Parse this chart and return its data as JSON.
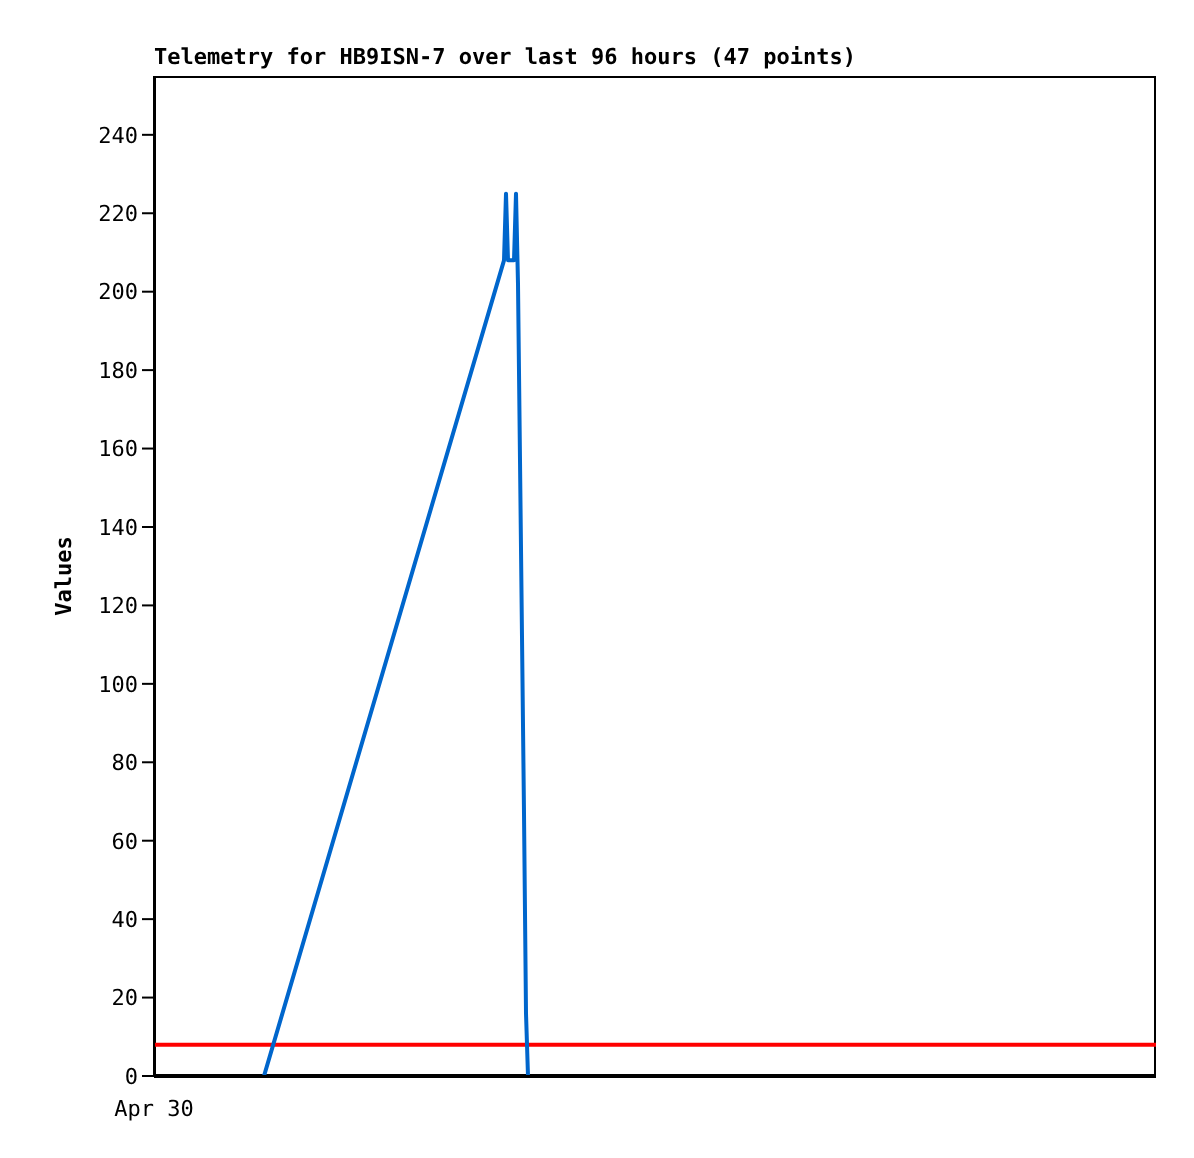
{
  "chart_data": {
    "type": "line",
    "title": "Telemetry for HB9ISN-7 over last 96 hours (47 points)",
    "ylabel": "Values",
    "annotations": [
      "Apr 30"
    ],
    "categories": [
      null,
      null,
      null,
      null,
      null,
      null,
      null,
      null,
      null,
      null,
      null,
      null,
      null,
      null,
      null,
      null,
      null,
      null,
      null,
      null,
      null,
      null,
      null,
      null,
      null,
      null,
      null,
      null,
      null,
      null,
      null,
      null,
      null,
      null,
      null,
      null,
      null,
      null,
      null,
      null,
      null,
      null,
      null,
      null,
      null,
      null,
      null,
      null,
      null,
      null,
      null,
      null,
      null,
      null,
      null,
      null,
      null,
      null,
      null,
      null,
      null,
      null,
      null,
      null,
      null,
      null,
      null,
      null,
      null,
      null,
      null,
      null,
      null,
      null,
      null,
      null,
      null,
      null,
      null,
      null,
      null,
      null,
      null,
      null,
      null,
      null,
      null,
      null,
      null,
      null,
      null,
      null,
      null,
      null,
      null,
      null,
      null,
      null,
      null,
      null,
      null,
      null,
      null,
      null,
      null,
      null,
      null,
      null,
      null,
      null,
      null,
      null,
      null,
      null,
      null,
      null,
      null,
      null,
      null,
      null,
      null,
      null,
      null,
      null,
      null,
      null,
      null,
      null,
      null,
      null,
      null,
      null,
      null,
      null,
      null,
      null,
      null,
      null,
      null,
      null,
      null,
      null,
      null,
      null,
      null,
      null,
      null,
      null,
      null,
      null,
      null,
      null,
      null,
      null,
      null,
      null,
      null,
      null,
      null,
      null,
      null,
      null,
      null,
      null,
      null,
      null,
      null,
      null,
      null,
      null,
      null,
      null,
      null,
      null,
      null,
      null,
      null,
      null,
      null,
      null,
      null,
      null,
      null,
      null,
      null,
      null,
      null,
      null,
      null,
      null,
      null,
      null,
      null,
      null,
      null,
      null,
      null,
      null,
      null,
      null,
      null,
      null,
      null,
      null,
      null,
      null,
      null,
      null,
      null,
      null,
      null,
      null,
      null,
      null,
      null,
      null,
      null,
      null,
      null,
      null,
      null,
      null,
      null,
      null,
      null,
      null,
      null,
      null,
      null,
      null,
      null,
      null,
      null,
      null,
      null,
      null,
      null,
      null,
      null,
      null,
      null,
      null,
      null,
      null,
      null,
      null,
      null,
      null,
      null,
      null,
      null,
      null,
      null,
      null,
      null,
      null,
      null,
      null,
      null,
      null,
      null,
      null,
      null,
      null,
      null,
      null,
      null,
      null,
      null,
      null,
      null,
      null,
      null,
      null,
      null,
      null,
      null,
      null,
      null,
      null,
      null,
      null,
      null,
      null,
      null,
      null,
      null,
      null,
      null,
      null,
      null,
      null,
      null,
      null,
      null,
      null,
      null,
      null,
      null,
      null,
      null,
      null,
      null,
      null,
      null,
      null,
      null,
      null,
      null,
      null,
      null,
      null,
      null,
      null,
      null,
      null,
      null,
      null,
      null,
      null,
      null,
      null,
      null,
      null,
      null,
      null,
      null,
      null,
      null,
      null,
      null,
      null,
      null,
      null,
      null,
      null,
      null,
      null,
      null,
      null,
      null,
      null,
      null,
      null,
      null,
      null,
      null,
      null,
      null,
      null,
      null,
      null,
      null,
      null,
      null,
      null,
      null,
      null,
      null,
      null,
      null,
      null,
      null,
      null,
      null,
      null,
      null,
      null,
      null,
      null,
      null,
      null,
      null,
      null,
      null,
      null,
      null,
      null,
      null,
      null,
      null,
      null,
      null,
      null,
      null,
      null,
      null,
      null,
      null,
      null,
      null,
      null,
      null,
      null,
      null,
      null,
      null,
      null,
      null,
      null,
      null,
      null,
      null,
      null,
      null,
      null,
      null,
      null,
      null,
      null,
      null,
      null,
      null,
      null,
      null,
      null,
      null,
      null,
      null,
      null,
      null,
      null,
      null,
      null,
      null,
      null,
      null,
      null,
      null,
      null,
      null,
      null,
      null,
      null,
      null,
      null,
      null,
      null,
      null,
      null,
      null,
      null,
      null,
      null,
      null,
      null,
      null,
      null,
      null,
      null,
      null,
      null,
      null,
      null,
      null,
      null,
      null,
      null,
      null,
      null,
      null,
      null,
      null,
      null,
      null,
      null,
      null,
      null,
      null,
      null,
      null,
      null,
      null,
      null,
      null,
      null,
      null,
      null,
      null,
      null,
      null,
      null,
      null,
      null,
      null,
      null,
      null,
      null,
      null,
      null,
      null,
      null,
      null,
      null,
      null,
      null,
      null,
      null,
      null,
      null,
      null,
      null
    ],
    "ylim": [
      0,
      255
    ],
    "yticks": [
      0,
      20,
      40,
      60,
      80,
      100,
      120,
      140,
      160,
      180,
      200,
      220,
      240
    ],
    "grid": false,
    "legend": false,
    "ref_lines": [
      {
        "axis": "y",
        "value": 8,
        "color": "#ff0000"
      },
      {
        "axis": "y",
        "value": 0,
        "color": "#000000"
      }
    ],
    "series": [
      {
        "color": "#0066cc",
        "values": [
          null,
          null,
          null,
          null,
          null,
          null,
          null,
          null,
          null,
          null,
          null,
          null,
          null,
          null,
          null,
          null,
          null,
          null,
          null,
          null,
          null,
          null,
          null,
          null,
          null,
          null,
          null,
          null,
          null,
          null,
          null,
          null,
          null,
          null,
          null,
          null,
          null,
          null,
          null,
          null,
          null,
          null,
          null,
          null,
          null,
          null,
          null,
          null,
          null,
          null,
          null,
          null,
          null,
          null,
          null,
          0,
          null,
          null,
          null,
          null,
          null,
          null,
          null,
          null,
          null,
          null,
          null,
          null,
          null,
          null,
          null,
          null,
          null,
          null,
          null,
          null,
          null,
          null,
          null,
          null,
          null,
          null,
          null,
          null,
          null,
          null,
          null,
          null,
          null,
          null,
          null,
          null,
          null,
          null,
          null,
          null,
          null,
          null,
          null,
          null,
          null,
          null,
          null,
          null,
          null,
          null,
          null,
          null,
          null,
          null,
          null,
          null,
          null,
          null,
          null,
          null,
          null,
          null,
          null,
          null,
          null,
          null,
          null,
          null,
          null,
          null,
          null,
          null,
          null,
          null,
          null,
          null,
          null,
          null,
          null,
          null,
          null,
          null,
          null,
          null,
          null,
          null,
          null,
          null,
          null,
          null,
          null,
          null,
          null,
          null,
          null,
          null,
          null,
          null,
          null,
          null,
          null,
          null,
          null,
          null,
          null,
          null,
          null,
          null,
          null,
          null,
          null,
          null,
          null,
          null,
          null,
          null,
          null,
          null,
          null,
          208,
          225,
          208,
          null,
          null,
          208,
          225,
          202,
          157,
          112,
          67,
          16,
          0,
          null,
          null,
          null,
          null,
          null,
          null,
          null,
          null,
          null,
          null,
          null,
          null,
          null,
          null,
          null,
          null,
          null,
          null,
          null,
          null,
          null,
          null,
          null,
          null,
          null,
          null,
          null,
          null,
          null,
          null,
          null,
          null,
          null,
          null,
          null,
          null,
          null,
          null,
          null,
          null,
          null,
          null,
          null,
          null,
          null,
          null,
          null,
          null,
          null,
          null,
          null,
          null,
          null,
          null,
          null,
          null,
          null,
          null,
          null,
          null,
          null,
          null,
          null,
          null,
          null,
          null,
          null,
          null,
          null,
          null,
          null,
          null,
          null,
          null,
          null,
          null,
          null,
          null,
          null,
          null,
          null,
          null,
          null,
          null,
          null,
          null,
          null,
          null,
          null,
          null,
          null,
          null,
          null,
          null,
          null,
          null,
          null,
          null,
          null,
          null,
          null,
          null,
          null,
          null,
          null,
          null,
          null,
          null,
          null,
          null,
          null,
          null,
          null,
          null,
          null,
          null,
          null,
          null,
          null,
          null,
          null,
          null,
          null,
          null,
          null,
          null,
          null,
          null,
          null,
          null,
          null,
          null,
          null,
          null,
          null,
          null,
          null,
          null,
          null,
          null,
          null,
          null,
          null,
          null,
          null,
          null,
          null,
          null,
          null,
          null,
          null,
          null,
          null,
          null,
          null,
          null,
          null,
          null,
          null,
          null,
          null,
          null,
          null,
          null,
          null,
          null,
          null,
          null,
          null,
          null,
          null,
          null,
          null,
          null,
          null,
          null,
          null,
          null,
          null,
          null,
          null,
          null,
          null,
          null,
          null,
          null,
          null,
          null,
          null,
          null,
          null,
          null,
          null,
          null,
          null,
          null,
          null,
          null,
          null,
          null,
          null,
          null,
          null,
          null,
          null,
          null,
          null,
          null,
          null,
          null,
          null,
          null,
          null,
          null,
          null,
          null,
          null,
          null,
          null,
          null,
          null,
          null,
          null,
          null,
          null,
          null,
          null,
          null,
          null,
          null,
          null,
          null,
          null,
          null,
          null,
          null,
          null,
          null,
          null,
          null,
          null,
          null,
          null,
          null,
          null,
          null,
          null,
          null,
          null,
          null,
          null,
          null,
          null,
          null,
          null,
          null,
          null,
          null,
          null,
          null,
          null,
          null,
          null,
          null,
          null,
          null,
          null,
          null,
          null,
          null,
          null,
          null,
          null,
          null,
          null,
          null,
          null,
          null,
          null,
          null,
          null,
          null,
          null,
          null,
          null,
          null,
          null,
          null,
          null,
          null,
          null,
          null,
          null,
          null,
          null,
          null,
          null,
          null,
          null,
          null,
          null,
          null,
          null,
          null,
          null,
          null,
          null,
          null,
          null,
          null,
          null,
          null,
          null,
          null
        ]
      }
    ]
  }
}
